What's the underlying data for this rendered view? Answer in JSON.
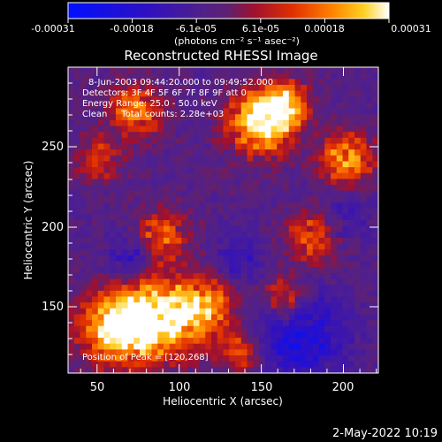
{
  "colorbar": {
    "tick_labels": [
      "-0.00031",
      "-0.00018",
      "-6.1e-05",
      "6.1e-05",
      "0.00018",
      "0.00031"
    ],
    "unit_label": "(photons cm⁻² s⁻¹ asec⁻²)"
  },
  "image": {
    "title": "Reconstructed RHESSI Image",
    "annotations": {
      "time": "8-Jun-2003 09:44:20.000 to 09:49:52.000",
      "detectors": "Detectors: 3F 4F 5F 6F 7F 8F 9F att 0",
      "energy": "Energy Range: 25.0 - 50.0 keV",
      "method": "Clean     Total counts: 2.28e+03",
      "peak": "Position of Peak = [120,268]"
    }
  },
  "axes": {
    "xlabel": "Heliocentric X (arcsec)",
    "ylabel": "Heliocentric Y (arcsec)",
    "x_ticks": [
      "50",
      "100",
      "150",
      "200"
    ],
    "y_ticks": [
      "150",
      "200",
      "250"
    ]
  },
  "footer": {
    "date": "2-May-2022 10:19"
  }
}
